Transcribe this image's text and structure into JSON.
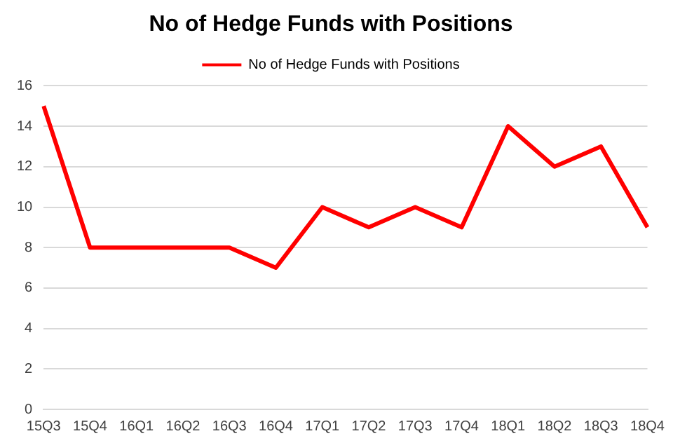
{
  "chart_data": {
    "type": "line",
    "title": "No of Hedge Funds with Positions",
    "categories": [
      "15Q3",
      "15Q4",
      "16Q1",
      "16Q2",
      "16Q3",
      "16Q4",
      "17Q1",
      "17Q2",
      "17Q3",
      "17Q4",
      "18Q1",
      "18Q2",
      "18Q3",
      "18Q4"
    ],
    "series": [
      {
        "name": "No of Hedge Funds with Positions",
        "color": "#ff0000",
        "values": [
          15,
          8,
          8,
          8,
          8,
          7,
          10,
          9,
          10,
          9,
          14,
          12,
          13,
          9
        ]
      }
    ],
    "ylim": [
      0,
      16
    ],
    "yticks": [
      0,
      2,
      4,
      6,
      8,
      10,
      12,
      14,
      16
    ],
    "grid": "y",
    "legend": "top",
    "marker": "none",
    "line_style": "solid"
  }
}
